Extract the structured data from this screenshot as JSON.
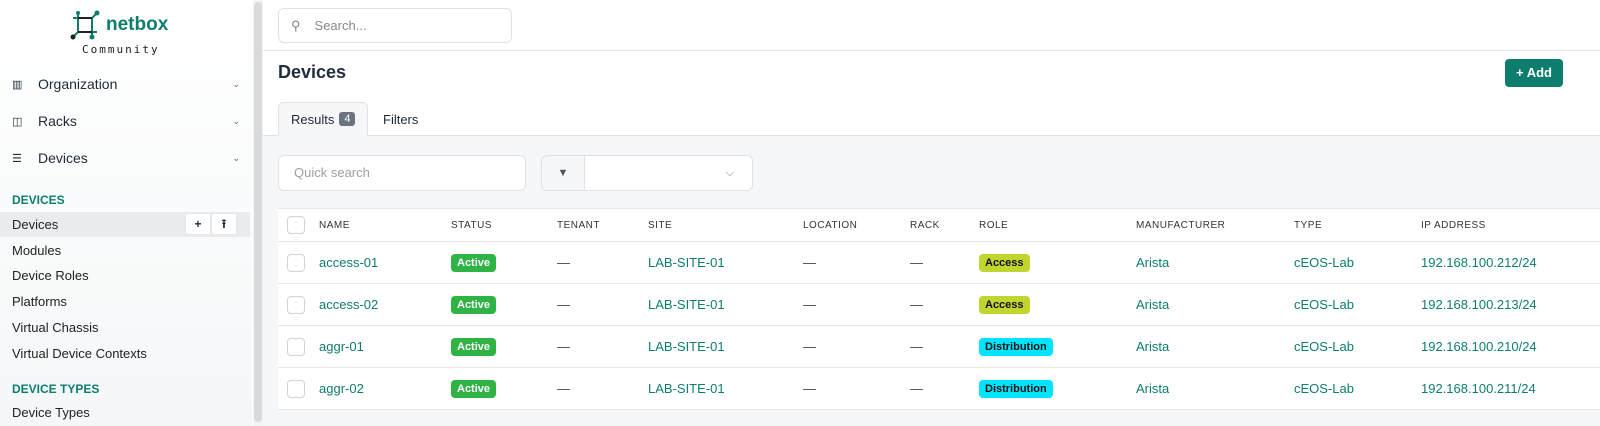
{
  "brand": {
    "name": "netbox",
    "edition": "Community"
  },
  "sidebar": {
    "menus": [
      {
        "label": "Organization",
        "icon": "building-icon"
      },
      {
        "label": "Racks",
        "icon": "rack-icon"
      },
      {
        "label": "Devices",
        "icon": "server-icon"
      }
    ],
    "section1": "DEVICES",
    "items": [
      "Devices",
      "Modules",
      "Device Roles",
      "Platforms",
      "Virtual Chassis",
      "Virtual Device Contexts"
    ],
    "section2": "DEVICE TYPES",
    "items2": [
      "Device Types"
    ],
    "add": "+",
    "import": "⭱"
  },
  "search": {
    "placeholder": "Search..."
  },
  "page": {
    "title": "Devices",
    "add_label": "Add"
  },
  "tabs": {
    "results": "Results",
    "count": "4",
    "filters": "Filters"
  },
  "quick_search": {
    "placeholder": "Quick search"
  },
  "table": {
    "headers": [
      "NAME",
      "STATUS",
      "TENANT",
      "SITE",
      "LOCATION",
      "RACK",
      "ROLE",
      "MANUFACTURER",
      "TYPE",
      "IP ADDRESS"
    ],
    "rows": [
      {
        "name": "access-01",
        "status": "Active",
        "tenant": "—",
        "site": "LAB-SITE-01",
        "location": "—",
        "rack": "—",
        "role": "Access",
        "manufacturer": "Arista",
        "type": "cEOS-Lab",
        "ip": "192.168.100.212/24"
      },
      {
        "name": "access-02",
        "status": "Active",
        "tenant": "—",
        "site": "LAB-SITE-01",
        "location": "—",
        "rack": "—",
        "role": "Access",
        "manufacturer": "Arista",
        "type": "cEOS-Lab",
        "ip": "192.168.100.213/24"
      },
      {
        "name": "aggr-01",
        "status": "Active",
        "tenant": "—",
        "site": "LAB-SITE-01",
        "location": "—",
        "rack": "—",
        "role": "Distribution",
        "manufacturer": "Arista",
        "type": "cEOS-Lab",
        "ip": "192.168.100.210/24"
      },
      {
        "name": "aggr-02",
        "status": "Active",
        "tenant": "—",
        "site": "LAB-SITE-01",
        "location": "—",
        "rack": "—",
        "role": "Distribution",
        "manufacturer": "Arista",
        "type": "cEOS-Lab",
        "ip": "192.168.100.211/24"
      }
    ]
  },
  "colors": {
    "brand": "#0d7d6e",
    "active": "#2fb344",
    "access": "#c0d62e",
    "distribution": "#00e5ff"
  }
}
